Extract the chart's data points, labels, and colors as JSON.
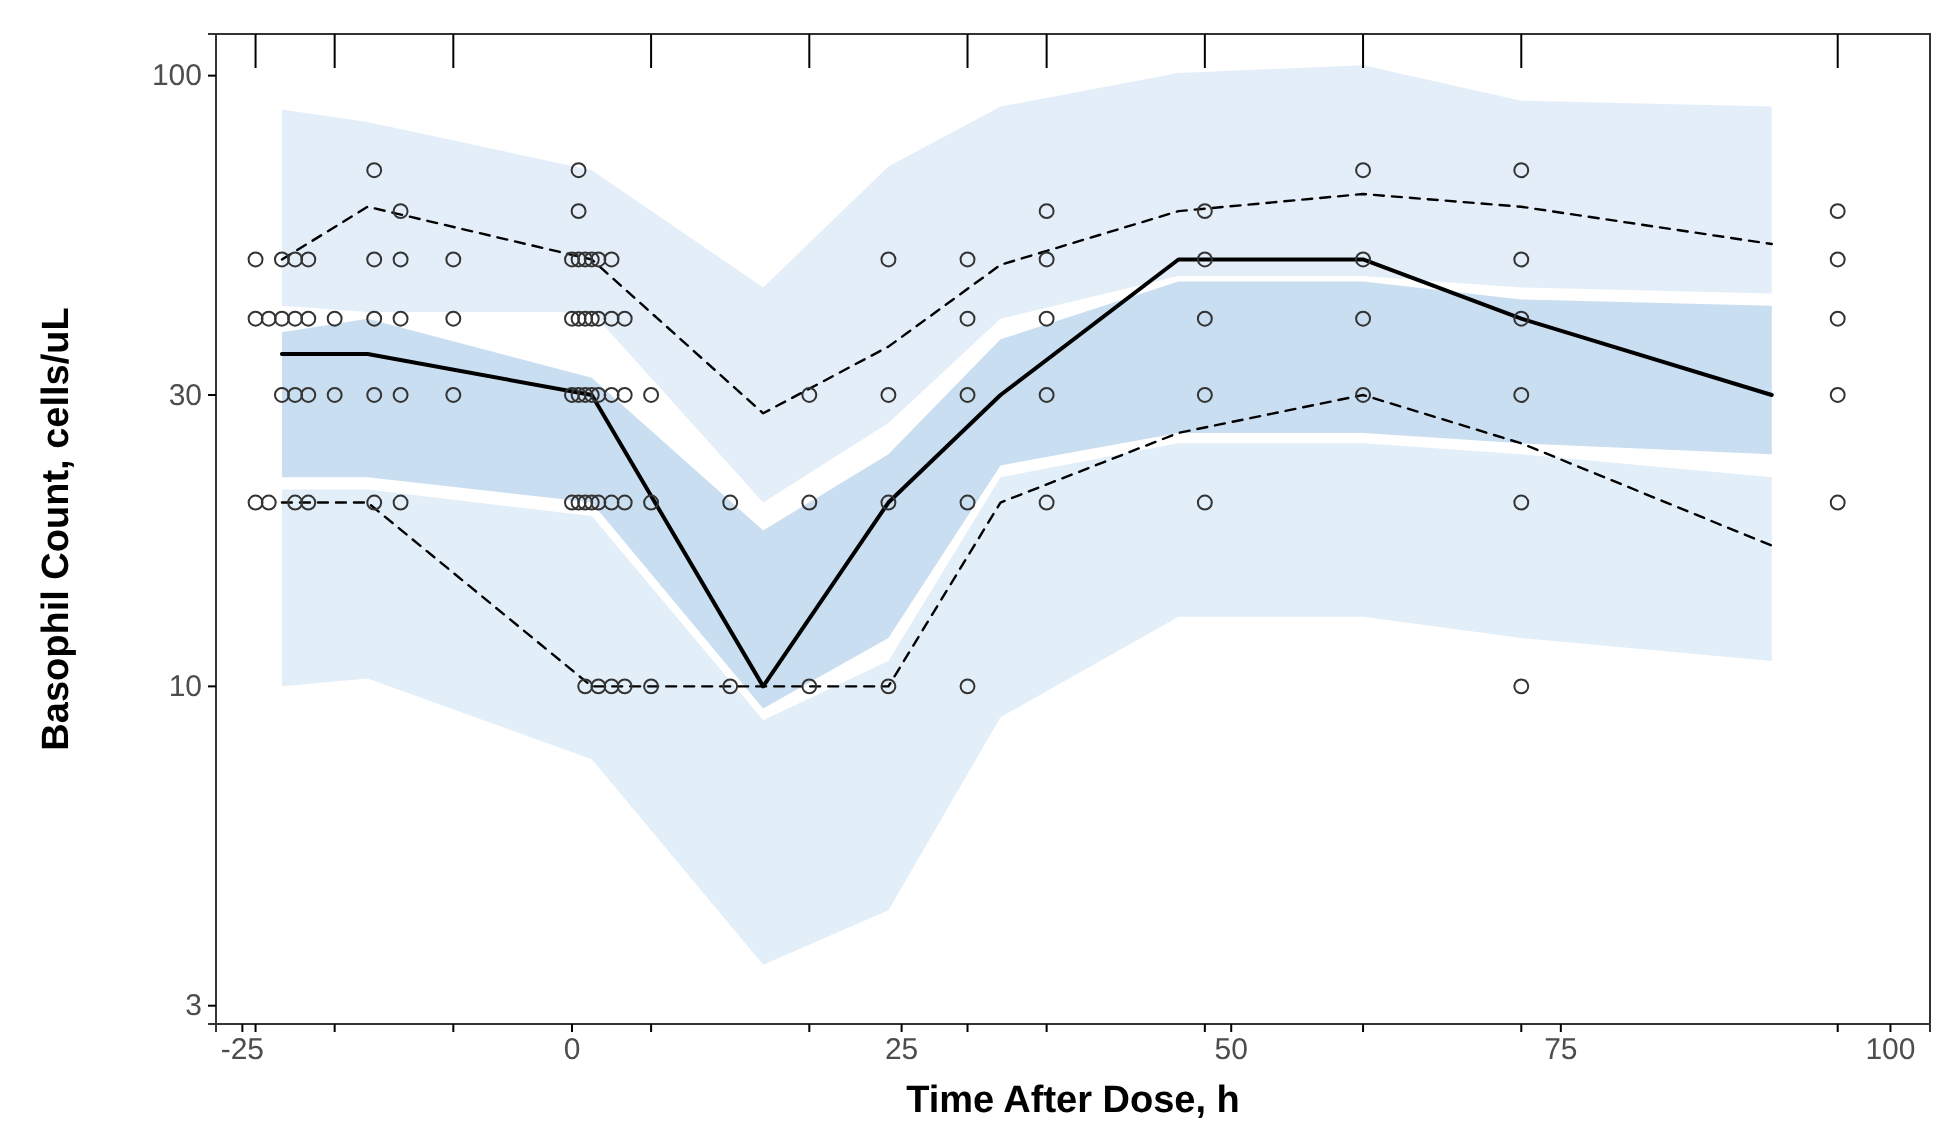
{
  "chart_data": {
    "type": "line",
    "xlabel": "Time After Dose, h",
    "ylabel": "Basophil Count, cells/uL",
    "log": "y",
    "grid": false,
    "marker": "circle",
    "xlim": [
      -27,
      103
    ],
    "xticks": [
      -25,
      0,
      25,
      50,
      75,
      100,
      {
        "value": -24,
        "label": null
      },
      {
        "value": -18,
        "label": null
      },
      {
        "value": -9,
        "label": null
      },
      {
        "value": 6,
        "label": null
      },
      {
        "value": 18,
        "label": null
      },
      {
        "value": 30,
        "label": null
      },
      {
        "value": 36,
        "label": null
      },
      {
        "value": 48,
        "label": null
      },
      {
        "value": 60,
        "label": null
      },
      {
        "value": 72,
        "label": null
      },
      {
        "value": 96,
        "label": null
      }
    ],
    "ylim": [
      2.8,
      117
    ],
    "yticks": [
      3,
      10,
      30,
      100
    ],
    "series": [
      {
        "color": "#000000",
        "marker": "none",
        "line_style": "dashed",
        "x": [
          -22,
          -15.5,
          1.5,
          14.5,
          24,
          32.5,
          46,
          60,
          72,
          91
        ],
        "values": [
          50,
          61,
          50,
          28,
          36,
          49,
          60,
          64,
          61,
          53
        ],
        "lower": [
          42,
          41,
          41,
          20,
          27,
          40,
          47,
          47,
          45,
          44
        ],
        "upper": [
          88,
          84,
          70,
          45,
          71,
          89,
          101,
          104,
          91,
          89
        ]
      },
      {
        "color": "#000000",
        "marker": "none",
        "line_style": "dashed",
        "x": [
          -22,
          -15.5,
          1.5,
          14.5,
          24,
          32.5,
          46,
          60,
          72,
          91
        ],
        "values": [
          20,
          20,
          10,
          10,
          10,
          20,
          26,
          30,
          25,
          17
        ],
        "lower": [
          10,
          10.3,
          7.6,
          3.5,
          4.3,
          8.9,
          13,
          13,
          12,
          11
        ],
        "upper": [
          21,
          21,
          19,
          8.8,
          11,
          22,
          25,
          25,
          24,
          22
        ]
      },
      {
        "color": "#000000",
        "marker": "none",
        "line_style": "solid",
        "x": [
          -22,
          -15.5,
          1.5,
          14.5,
          24,
          32.5,
          46,
          60,
          72,
          91
        ],
        "values": [
          35,
          35,
          30,
          10,
          20,
          30,
          50,
          50,
          40,
          30
        ],
        "lower": [
          22,
          22,
          20,
          9.2,
          12,
          23,
          26,
          26,
          25,
          24
        ],
        "upper": [
          38,
          40,
          32,
          18,
          24,
          37,
          46,
          46,
          43,
          42
        ]
      },
      {
        "type": "scatter",
        "color": "#333333",
        "x": [
          -15,
          0.5,
          72,
          60,
          -13,
          0.5,
          36,
          48,
          96,
          -24,
          -22,
          -21,
          -20,
          -15,
          -13,
          -9,
          0,
          0.5,
          1,
          1.5,
          2,
          3,
          24,
          30,
          36,
          48,
          60,
          72,
          96,
          -24,
          -23,
          -22,
          -21,
          -20,
          -18,
          -15,
          -13,
          -9,
          0,
          0.5,
          1,
          1.5,
          2,
          3,
          4,
          30,
          36,
          48,
          60,
          72,
          96,
          -22,
          -21,
          -20,
          -18,
          -15,
          -13,
          -9,
          0,
          0.5,
          1,
          1.5,
          2,
          3,
          4,
          6,
          18,
          24,
          30,
          36,
          48,
          60,
          72,
          96,
          -24,
          -23,
          -21,
          -20,
          -15,
          -13,
          0,
          0.5,
          1,
          1.5,
          2,
          3,
          4,
          6,
          12,
          18,
          24,
          30,
          36,
          48,
          72,
          96,
          1,
          2,
          3,
          4,
          6,
          12,
          18,
          24,
          30,
          72
        ],
        "values": [
          70,
          70,
          70,
          70,
          60,
          60,
          60,
          60,
          60,
          50,
          50,
          50,
          50,
          50,
          50,
          50,
          50,
          50,
          50,
          50,
          50,
          50,
          50,
          50,
          50,
          50,
          50,
          50,
          50,
          40,
          40,
          40,
          40,
          40,
          40,
          40,
          40,
          40,
          40,
          40,
          40,
          40,
          40,
          40,
          40,
          40,
          40,
          40,
          40,
          40,
          40,
          30,
          30,
          30,
          30,
          30,
          30,
          30,
          30,
          30,
          30,
          30,
          30,
          30,
          30,
          30,
          30,
          30,
          30,
          30,
          30,
          30,
          30,
          30,
          20,
          20,
          20,
          20,
          20,
          20,
          20,
          20,
          20,
          20,
          20,
          20,
          20,
          20,
          20,
          20,
          20,
          20,
          20,
          20,
          20,
          20,
          10,
          10,
          10,
          10,
          10,
          10,
          10,
          10,
          10,
          10
        ]
      }
    ]
  }
}
